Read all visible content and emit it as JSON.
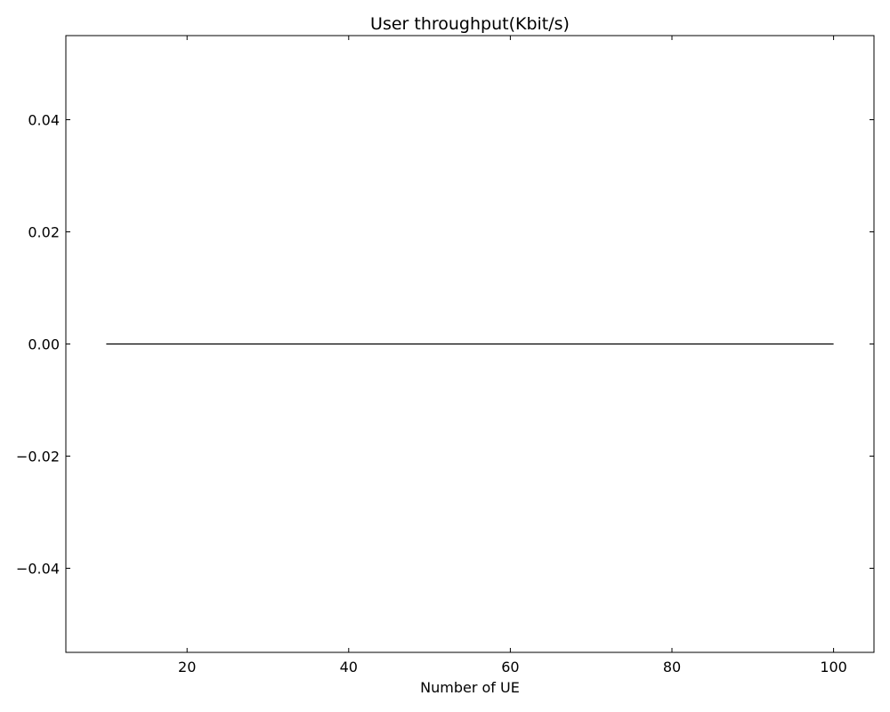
{
  "chart_data": {
    "type": "line",
    "title": "User throughput(Kbit/s)",
    "xlabel": "Number of UE",
    "ylabel": "",
    "xlim": [
      5,
      105
    ],
    "ylim": [
      -0.055,
      0.055
    ],
    "xticks": [
      20,
      40,
      60,
      80,
      100
    ],
    "xtick_labels": [
      "20",
      "40",
      "60",
      "80",
      "100"
    ],
    "yticks": [
      -0.04,
      -0.02,
      0.0,
      0.02,
      0.04
    ],
    "ytick_labels": [
      "−0.04",
      "−0.02",
      "0.00",
      "0.02",
      "0.04"
    ],
    "grid": false,
    "series": [
      {
        "name": "User throughput",
        "color": "#000000",
        "x": [
          10,
          100
        ],
        "y": [
          0,
          0
        ]
      }
    ]
  }
}
